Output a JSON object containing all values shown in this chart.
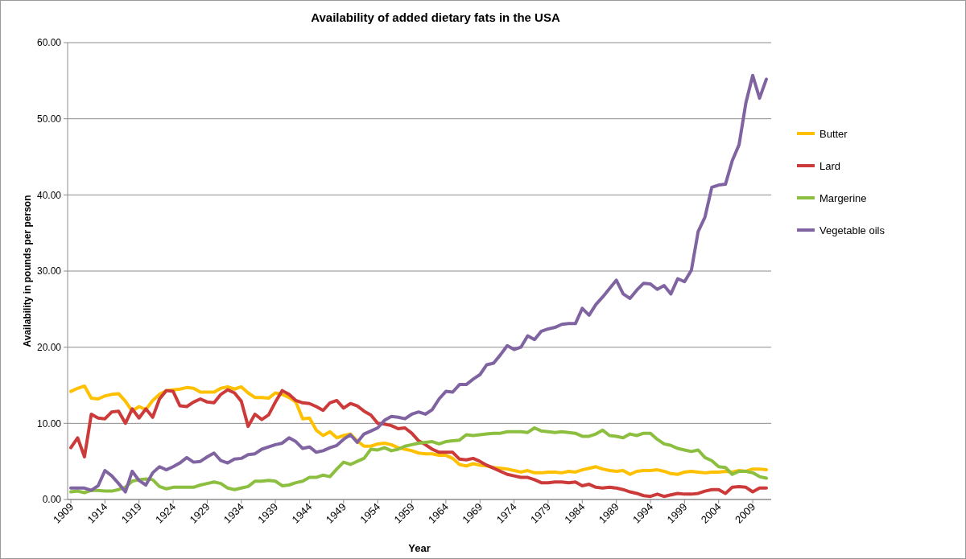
{
  "chart_data": {
    "type": "line",
    "title": "Availability of added dietary fats in the USA",
    "xlabel": "Year",
    "ylabel": "Availability in pounds per person",
    "categories": [
      "1909",
      null,
      null,
      null,
      null,
      "1914",
      null,
      null,
      null,
      null,
      "1919",
      null,
      null,
      null,
      null,
      "1924",
      null,
      null,
      null,
      null,
      "1929",
      null,
      null,
      null,
      null,
      "1934",
      null,
      null,
      null,
      null,
      "1939",
      null,
      null,
      null,
      null,
      "1944",
      null,
      null,
      null,
      null,
      "1949",
      null,
      null,
      null,
      null,
      "1954",
      null,
      null,
      null,
      null,
      "1959",
      null,
      null,
      null,
      null,
      "1964",
      null,
      null,
      null,
      null,
      "1969",
      null,
      null,
      null,
      null,
      "1974",
      null,
      null,
      null,
      null,
      "1979",
      null,
      null,
      null,
      null,
      "1984",
      null,
      null,
      null,
      null,
      "1989",
      null,
      null,
      null,
      null,
      "1994",
      null,
      null,
      null,
      null,
      "1999",
      null,
      null,
      null,
      null,
      "2004",
      null,
      null,
      null,
      null,
      "2009",
      null,
      null
    ],
    "series": [
      {
        "name": "Butter",
        "color": "#ffc000",
        "values": [
          14.2,
          14.6,
          14.9,
          13.3,
          13.2,
          13.6,
          13.8,
          13.9,
          12.9,
          11.6,
          12.2,
          11.8,
          13.0,
          13.8,
          14.3,
          14.4,
          14.5,
          14.7,
          14.6,
          14.1,
          14.1,
          14.1,
          14.6,
          14.8,
          14.5,
          14.8,
          14.0,
          13.4,
          13.4,
          13.3,
          14.0,
          13.8,
          13.4,
          12.8,
          10.6,
          10.7,
          9.1,
          8.4,
          8.9,
          8.1,
          8.4,
          8.6,
          7.7,
          7.0,
          7.0,
          7.3,
          7.4,
          7.2,
          6.8,
          6.6,
          6.4,
          6.1,
          6.0,
          6.0,
          5.8,
          5.8,
          5.4,
          4.6,
          4.4,
          4.7,
          4.5,
          4.4,
          4.2,
          4.1,
          4.0,
          3.8,
          3.6,
          3.8,
          3.5,
          3.5,
          3.6,
          3.6,
          3.5,
          3.7,
          3.6,
          3.9,
          4.1,
          4.3,
          4.0,
          3.8,
          3.7,
          3.8,
          3.3,
          3.7,
          3.8,
          3.8,
          3.9,
          3.7,
          3.4,
          3.3,
          3.6,
          3.7,
          3.6,
          3.5,
          3.6,
          3.6,
          3.7,
          3.6,
          3.8,
          3.7,
          4.0,
          4.0,
          3.9
        ]
      },
      {
        "name": "Lard",
        "color": "#cc3a3a",
        "values": [
          6.8,
          8.1,
          5.6,
          11.2,
          10.7,
          10.6,
          11.5,
          11.6,
          10.0,
          11.9,
          10.7,
          11.9,
          10.8,
          13.2,
          14.3,
          14.2,
          12.3,
          12.2,
          12.8,
          13.2,
          12.8,
          12.7,
          13.8,
          14.4,
          14.0,
          12.9,
          9.6,
          11.2,
          10.5,
          11.1,
          12.8,
          14.3,
          13.8,
          13.0,
          12.7,
          12.6,
          12.2,
          11.7,
          12.7,
          13.0,
          12.0,
          12.6,
          12.3,
          11.6,
          11.1,
          10.0,
          9.9,
          9.7,
          9.3,
          9.4,
          8.7,
          7.7,
          7.2,
          6.6,
          6.2,
          6.2,
          6.2,
          5.3,
          5.2,
          5.4,
          5.0,
          4.5,
          4.1,
          3.7,
          3.3,
          3.1,
          2.9,
          2.9,
          2.6,
          2.2,
          2.2,
          2.3,
          2.3,
          2.2,
          2.3,
          1.8,
          2.0,
          1.6,
          1.5,
          1.6,
          1.5,
          1.3,
          1.0,
          0.8,
          0.5,
          0.4,
          0.7,
          0.4,
          0.6,
          0.8,
          0.7,
          0.7,
          0.8,
          1.1,
          1.3,
          1.3,
          0.8,
          1.6,
          1.7,
          1.6,
          1.0,
          1.5,
          1.5
        ]
      },
      {
        "name": "Margerine",
        "color": "#8cbf40",
        "values": [
          1.0,
          1.1,
          0.9,
          1.2,
          1.2,
          1.1,
          1.1,
          1.3,
          1.6,
          2.4,
          2.6,
          2.7,
          2.6,
          1.7,
          1.4,
          1.6,
          1.6,
          1.6,
          1.6,
          1.9,
          2.1,
          2.3,
          2.1,
          1.5,
          1.3,
          1.5,
          1.7,
          2.4,
          2.4,
          2.5,
          2.4,
          1.8,
          1.9,
          2.2,
          2.4,
          2.9,
          2.9,
          3.2,
          3.0,
          4.0,
          4.9,
          4.6,
          5.0,
          5.4,
          6.6,
          6.5,
          6.8,
          6.4,
          6.6,
          7.0,
          7.2,
          7.4,
          7.5,
          7.6,
          7.3,
          7.6,
          7.7,
          7.8,
          8.5,
          8.4,
          8.5,
          8.6,
          8.7,
          8.7,
          8.9,
          8.9,
          8.9,
          8.8,
          9.4,
          9.0,
          8.9,
          8.8,
          8.9,
          8.8,
          8.7,
          8.3,
          8.3,
          8.6,
          9.1,
          8.4,
          8.3,
          8.1,
          8.6,
          8.4,
          8.7,
          8.7,
          7.9,
          7.3,
          7.1,
          6.7,
          6.5,
          6.3,
          6.5,
          5.5,
          5.1,
          4.3,
          4.2,
          3.3,
          3.7,
          3.7,
          3.5,
          3.0,
          2.8
        ]
      },
      {
        "name": "Vegetable oils",
        "color": "#8064a2",
        "values": [
          1.5,
          1.5,
          1.5,
          1.2,
          1.8,
          3.8,
          3.1,
          2.1,
          1.0,
          3.7,
          2.5,
          1.9,
          3.5,
          4.3,
          3.9,
          4.3,
          4.8,
          5.5,
          4.9,
          5.0,
          5.6,
          6.1,
          5.1,
          4.8,
          5.3,
          5.4,
          5.9,
          6.0,
          6.6,
          6.9,
          7.2,
          7.4,
          8.1,
          7.6,
          6.7,
          6.9,
          6.2,
          6.4,
          6.8,
          7.1,
          7.9,
          8.5,
          7.5,
          8.6,
          9.0,
          9.4,
          10.4,
          10.9,
          10.8,
          10.6,
          11.2,
          11.5,
          11.2,
          11.8,
          13.2,
          14.2,
          14.1,
          15.1,
          15.1,
          15.8,
          16.4,
          17.7,
          17.9,
          19.0,
          20.2,
          19.7,
          20.0,
          21.5,
          21.0,
          22.1,
          22.4,
          22.6,
          23.0,
          23.1,
          23.1,
          25.1,
          24.2,
          25.6,
          26.6,
          27.7,
          28.8,
          27.0,
          26.4,
          27.5,
          28.4,
          28.3,
          27.6,
          28.1,
          27.0,
          29.0,
          28.6,
          30.1,
          35.2,
          37.1,
          41.0,
          41.3,
          41.4,
          44.5,
          46.6,
          52.1,
          55.7,
          52.7,
          55.2
        ]
      }
    ],
    "ylim": [
      0,
      60
    ],
    "yticks": [
      {
        "value": 0,
        "label": "0.00"
      },
      {
        "value": 10,
        "label": "10.00"
      },
      {
        "value": 20,
        "label": "20.00"
      },
      {
        "value": 30,
        "label": "30.00"
      },
      {
        "value": 40,
        "label": "40.00"
      },
      {
        "value": 50,
        "label": "50.00"
      },
      {
        "value": 60,
        "label": "60.00"
      }
    ],
    "grid": "y",
    "legend": "right",
    "line_style": "solid"
  }
}
